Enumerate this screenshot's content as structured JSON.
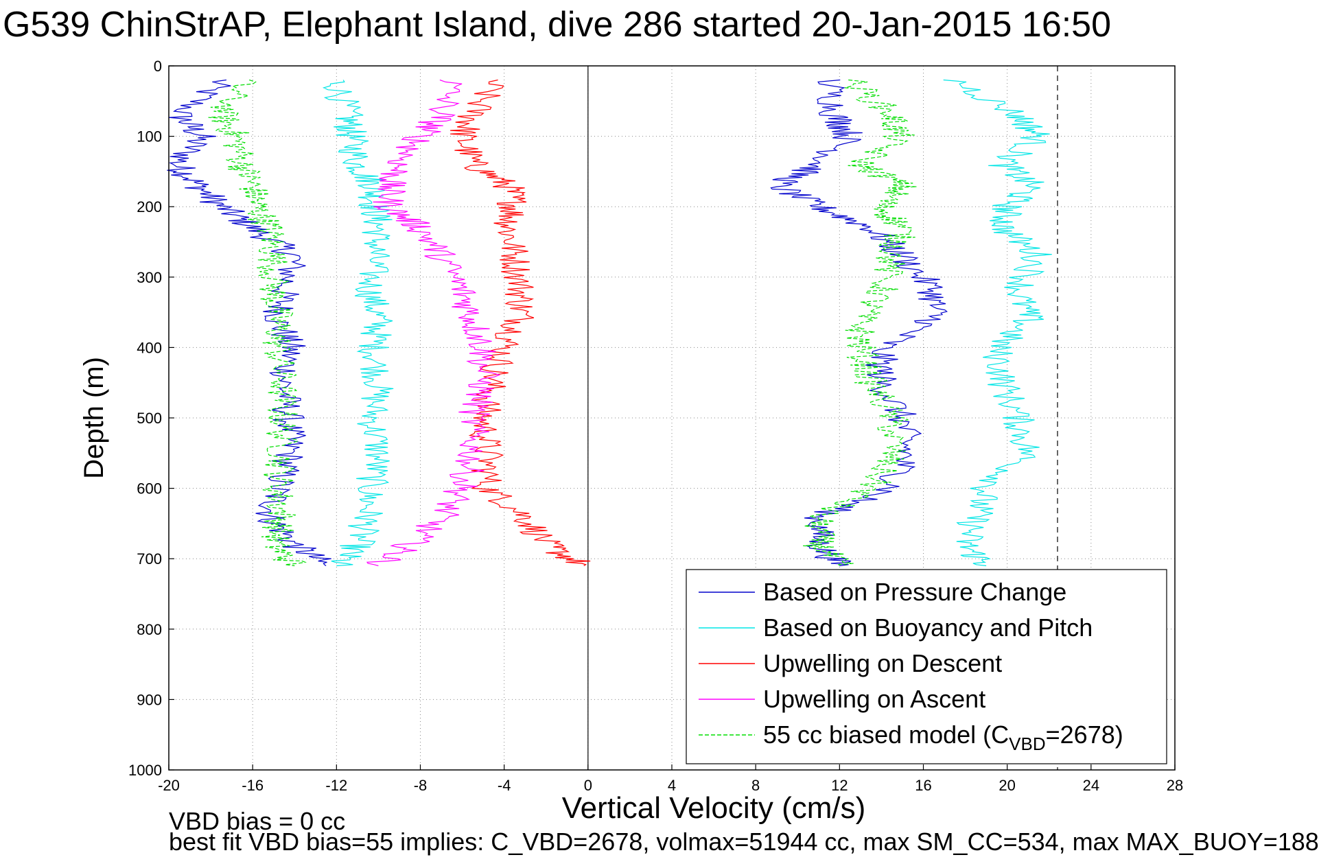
{
  "chart_data": {
    "type": "line",
    "title": "G539 ChinStrAP, Elephant Island, dive 286 started 20-Jan-2015 16:50",
    "xlabel": "Vertical Velocity (cm/s)",
    "ylabel": "Depth (m)",
    "xlim": [
      -20,
      28
    ],
    "ylim": [
      0,
      1000
    ],
    "y_reversed": true,
    "grid": true,
    "xticks": [
      -20,
      -16,
      -12,
      -8,
      -4,
      0,
      4,
      8,
      12,
      16,
      20,
      24,
      28
    ],
    "yticks": [
      0,
      100,
      200,
      300,
      400,
      500,
      600,
      700,
      800,
      900,
      1000
    ],
    "vertical_lines": [
      {
        "x": 0,
        "style": "solid"
      },
      {
        "x": 22.4,
        "style": "dashed"
      }
    ],
    "legend_position": "bottom-right",
    "legend_entries": [
      {
        "label": "Based on Pressure Change",
        "color": "#0000cc",
        "style": "solid"
      },
      {
        "label": "Based on Buoyancy and Pitch",
        "color": "#00e5e5",
        "style": "solid"
      },
      {
        "label": "Upwelling on Descent",
        "color": "#ff0000",
        "style": "solid"
      },
      {
        "label": "Upwelling on Ascent",
        "color": "#ff00ff",
        "style": "solid"
      },
      {
        "label": "55 cc biased model (C",
        "label_sub": "VBD",
        "label_after": "=2678)",
        "color": "#00dd00",
        "style": "dashed"
      }
    ],
    "series": [
      {
        "group": "descent",
        "color": "#0000cc",
        "style": "solid",
        "x": [
          -17.5,
          -19.5,
          -18.5,
          -19.6,
          -18.6,
          -17.5,
          -16.0,
          -14.0,
          -14.5,
          -14.8,
          -14.2,
          -14.5,
          -14.3,
          -14.2,
          -14.8,
          -15.2,
          -14.0,
          -12.5
        ],
        "y": [
          20,
          70,
          100,
          140,
          170,
          200,
          230,
          270,
          320,
          360,
          400,
          450,
          500,
          550,
          600,
          640,
          680,
          710
        ]
      },
      {
        "group": "descent",
        "color": "#00e5e5",
        "style": "solid",
        "x": [
          -12.0,
          -11.5,
          -11.3,
          -11.0,
          -10.2,
          -10.2,
          -10.0,
          -10.2,
          -10.4,
          -10.0,
          -10.2,
          -10.0,
          -10.3,
          -10.0,
          -10.4,
          -10.5,
          -11.0,
          -12.0
        ],
        "y": [
          20,
          70,
          100,
          140,
          170,
          200,
          230,
          270,
          320,
          360,
          400,
          450,
          500,
          550,
          600,
          640,
          680,
          710
        ]
      },
      {
        "group": "descent",
        "color": "#ff0000",
        "style": "solid",
        "x": [
          -4.5,
          -5.5,
          -6.0,
          -5.5,
          -3.8,
          -3.5,
          -3.8,
          -3.5,
          -3.2,
          -3.2,
          -4.0,
          -4.6,
          -5.0,
          -4.8,
          -4.8,
          -3.0,
          -2.0,
          -0.2
        ],
        "y": [
          20,
          70,
          100,
          140,
          170,
          200,
          230,
          270,
          320,
          360,
          400,
          450,
          500,
          550,
          600,
          640,
          680,
          710
        ]
      },
      {
        "group": "descent",
        "color": "#00dd00",
        "style": "dashed",
        "x": [
          -16.5,
          -17.5,
          -16.8,
          -16.5,
          -16.0,
          -15.8,
          -15.2,
          -15.0,
          -15.0,
          -14.8,
          -14.8,
          -14.6,
          -14.6,
          -14.6,
          -14.8,
          -14.6,
          -15.0,
          -14.0
        ],
        "y": [
          20,
          70,
          100,
          140,
          170,
          200,
          230,
          270,
          320,
          360,
          400,
          450,
          500,
          550,
          600,
          640,
          680,
          710
        ]
      },
      {
        "group": "ascent",
        "color": "#0000cc",
        "style": "solid",
        "x": [
          11.5,
          11.8,
          12.5,
          11.0,
          9.0,
          11.0,
          13.5,
          15.0,
          16.5,
          16.5,
          14.0,
          14.0,
          15.0,
          15.2,
          14.5,
          11.0,
          11.0,
          12.0
        ],
        "y": [
          20,
          70,
          100,
          140,
          170,
          200,
          230,
          270,
          320,
          360,
          400,
          450,
          500,
          550,
          600,
          640,
          680,
          710
        ]
      },
      {
        "group": "ascent",
        "color": "#00e5e5",
        "style": "solid",
        "x": [
          17.5,
          20.5,
          21.5,
          19.8,
          21.2,
          20.0,
          19.8,
          21.5,
          20.5,
          21.0,
          19.5,
          19.8,
          20.5,
          21.0,
          19.0,
          18.5,
          18.0,
          19.0
        ],
        "y": [
          20,
          70,
          100,
          140,
          170,
          200,
          230,
          270,
          320,
          360,
          400,
          450,
          500,
          550,
          600,
          640,
          680,
          710
        ]
      },
      {
        "group": "ascent",
        "color": "#ff00ff",
        "style": "solid",
        "x": [
          -6.5,
          -7.0,
          -8.0,
          -9.0,
          -9.5,
          -9.5,
          -8.0,
          -7.0,
          -6.0,
          -5.5,
          -5.0,
          -5.0,
          -5.5,
          -5.5,
          -6.0,
          -7.0,
          -8.5,
          -10.0
        ],
        "y": [
          20,
          70,
          100,
          140,
          170,
          200,
          230,
          270,
          320,
          360,
          400,
          450,
          500,
          550,
          600,
          640,
          680,
          710
        ]
      },
      {
        "group": "ascent",
        "color": "#00dd00",
        "style": "dashed",
        "x": [
          12.5,
          14.5,
          14.8,
          13.0,
          15.0,
          14.0,
          15.0,
          14.5,
          14.0,
          13.0,
          13.0,
          13.5,
          14.5,
          14.5,
          13.5,
          11.0,
          11.0,
          12.0
        ],
        "y": [
          20,
          70,
          100,
          140,
          170,
          200,
          230,
          270,
          320,
          360,
          400,
          450,
          500,
          550,
          600,
          640,
          680,
          710
        ]
      }
    ]
  },
  "footer": {
    "line1": "VBD bias = 0 cc",
    "line2": "best fit VBD bias=55 implies: C_VBD=2678, volmax=51944 cc, max SM_CC=534, max MAX_BUOY=188"
  }
}
